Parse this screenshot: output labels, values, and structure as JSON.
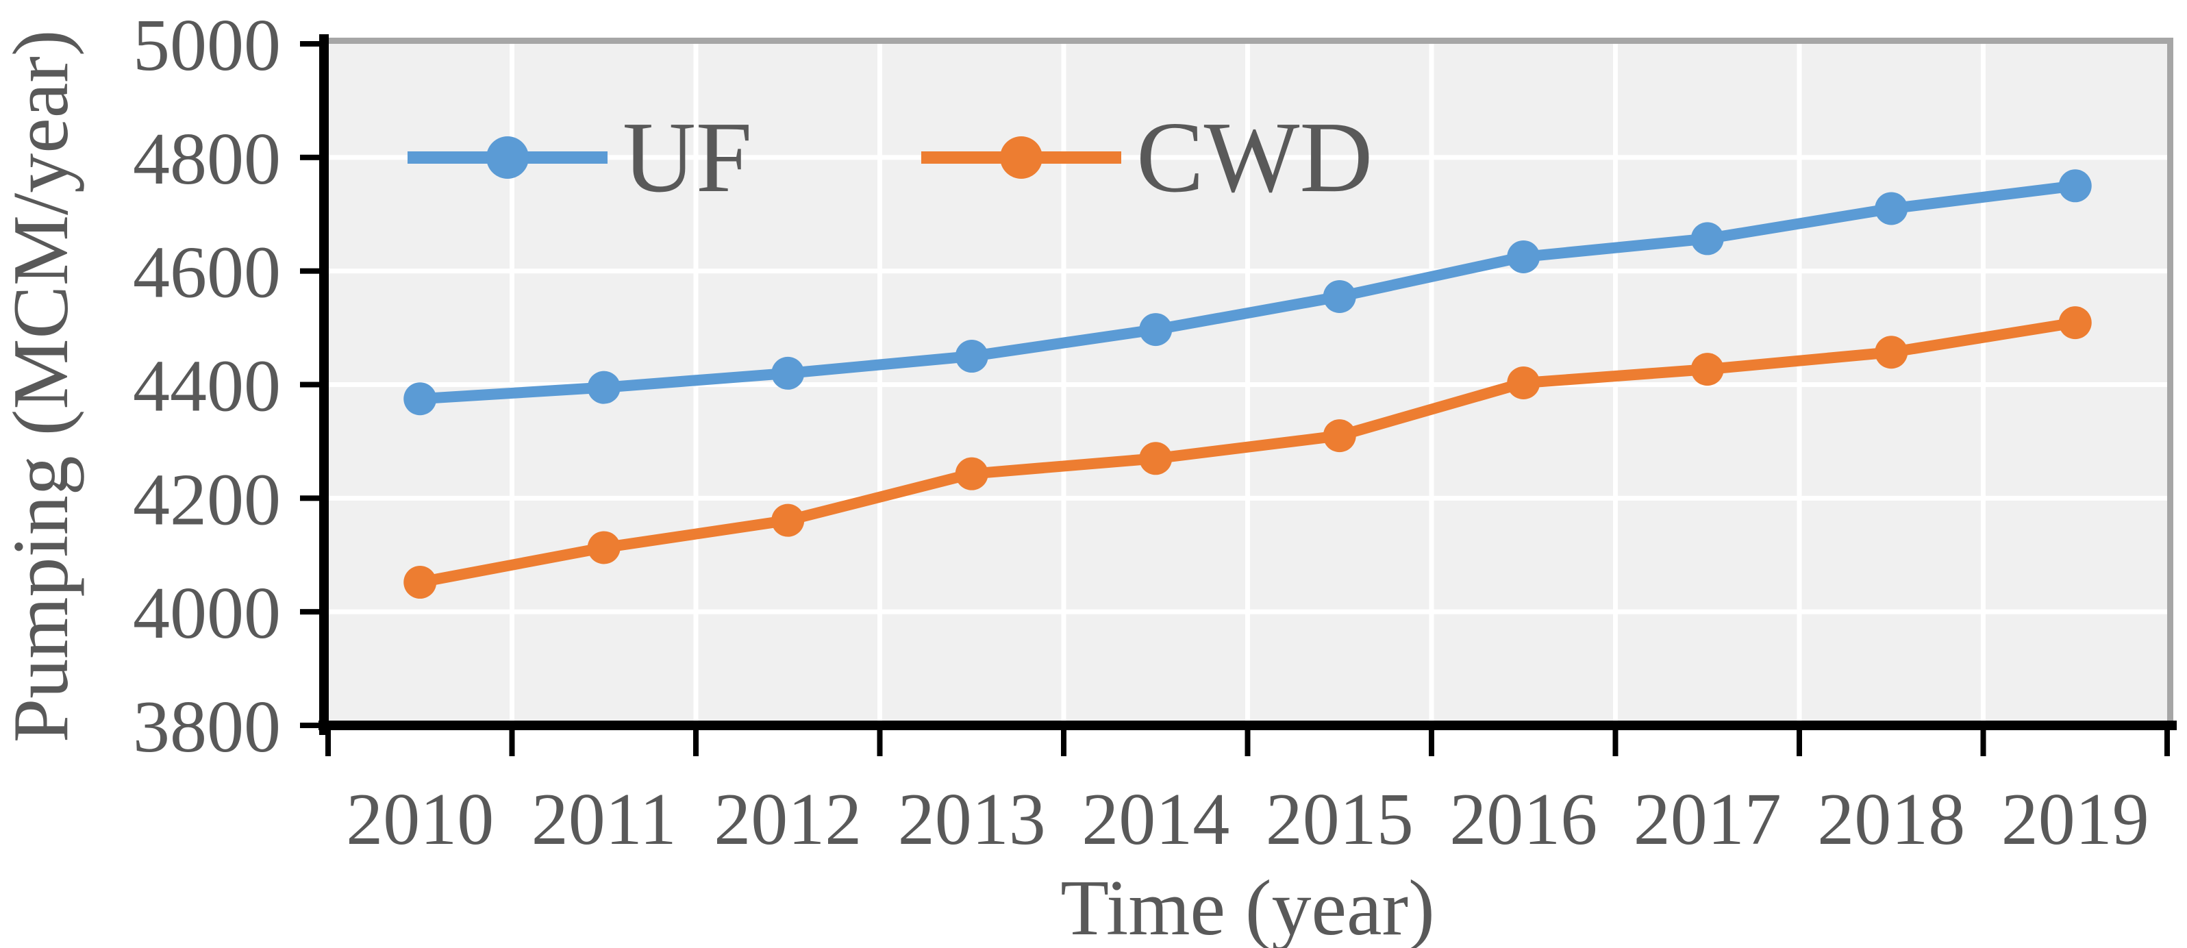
{
  "chart_data": {
    "type": "line",
    "title": "",
    "xlabel": "Time (year)",
    "ylabel": "Pumping (MCM/year)",
    "categories": [
      "2010",
      "2011",
      "2012",
      "2013",
      "2014",
      "2015",
      "2016",
      "2017",
      "2018",
      "2019"
    ],
    "series": [
      {
        "name": "UF",
        "color": "#5B9BD5",
        "values": [
          4375,
          4395,
          4420,
          4450,
          4497,
          4555,
          4625,
          4657,
          4710,
          4750
        ]
      },
      {
        "name": "CWD",
        "color": "#ED7D31",
        "values": [
          4052,
          4113,
          4161,
          4243,
          4270,
          4310,
          4403,
          4427,
          4457,
          4509
        ]
      }
    ],
    "ylim": [
      3800,
      5000
    ],
    "yticks": [
      3800,
      4000,
      4200,
      4400,
      4600,
      4800,
      5000
    ],
    "grid": true,
    "legend_position": "inside-top-left",
    "marker": "circle",
    "colors": {
      "plot_bg": "#F0F0F0",
      "gridline": "#FFFFFF",
      "axis": "#000000",
      "text": "#595959",
      "border": "#A6A6A6",
      "page_bg": "#FFFFFF"
    }
  }
}
